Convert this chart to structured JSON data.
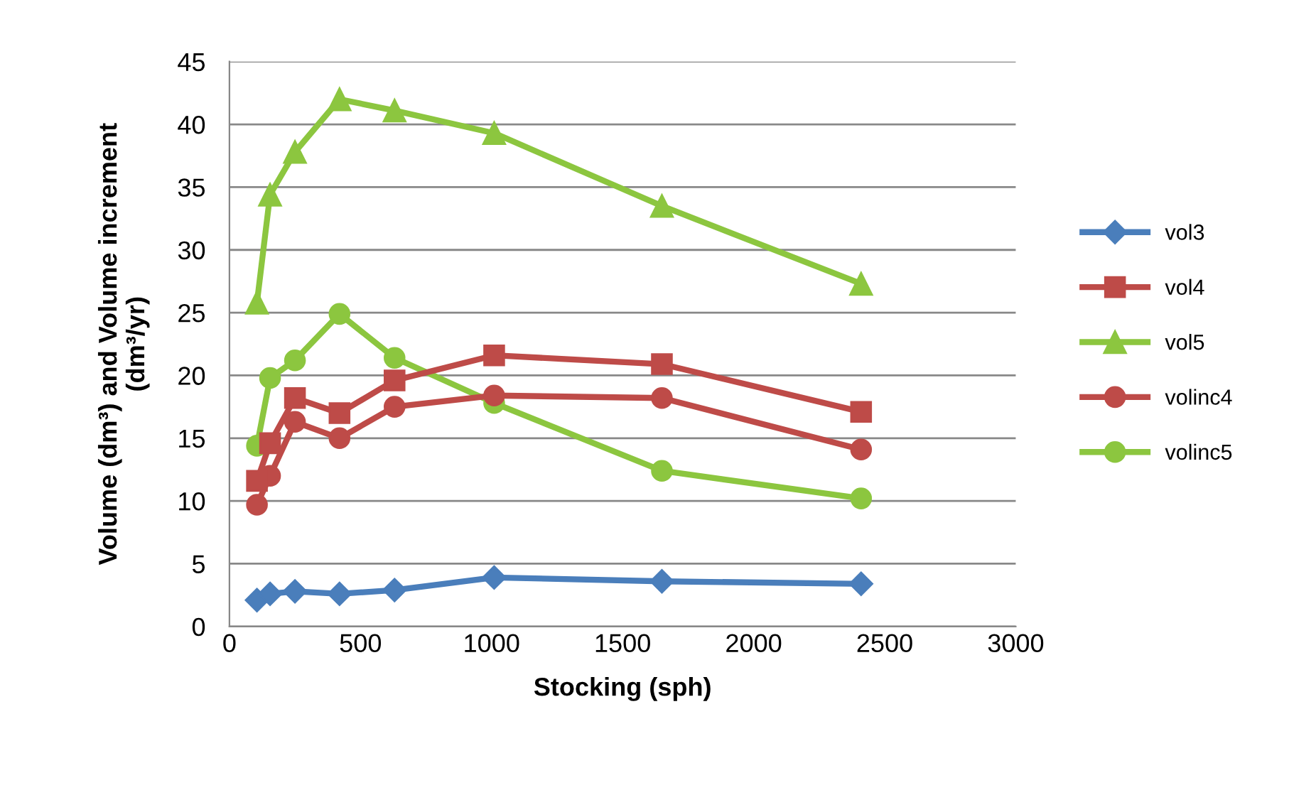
{
  "chart_data": {
    "type": "line",
    "xlabel": "Stocking (sph)",
    "ylabel": "Volume (dm³) and Volume increment\n(dm³/yr)",
    "x": [
      105,
      155,
      250,
      420,
      630,
      1010,
      1650,
      2410
    ],
    "xlim": [
      0,
      3000
    ],
    "xticks": [
      0,
      500,
      1000,
      1500,
      2000,
      2500,
      3000
    ],
    "ylim": [
      0,
      45
    ],
    "yticks": [
      0,
      5,
      10,
      15,
      20,
      25,
      30,
      35,
      40,
      45
    ],
    "grid": "y",
    "legend": "right",
    "line_style": "solid",
    "series": [
      {
        "name": "vol3",
        "color": "#4a7ebb",
        "marker": "diamond",
        "values": [
          2.1,
          2.6,
          2.8,
          2.6,
          2.9,
          3.9,
          3.6,
          3.4
        ]
      },
      {
        "name": "vol4",
        "color": "#be4b48",
        "marker": "square",
        "values": [
          11.6,
          14.6,
          18.2,
          17.0,
          19.6,
          21.6,
          20.9,
          17.1
        ]
      },
      {
        "name": "vol5",
        "color": "#8cc63f",
        "marker": "triangle",
        "values": [
          25.8,
          34.4,
          37.8,
          42.0,
          41.1,
          39.3,
          33.5,
          27.3
        ]
      },
      {
        "name": "volinc4",
        "color": "#be4b48",
        "marker": "circle",
        "values": [
          9.7,
          12.0,
          16.3,
          15.0,
          17.5,
          18.4,
          18.2,
          14.1
        ]
      },
      {
        "name": "volinc5",
        "color": "#8cc63f",
        "marker": "circle",
        "values": [
          14.4,
          19.8,
          21.2,
          24.9,
          21.4,
          17.8,
          12.4,
          10.2
        ]
      }
    ]
  }
}
